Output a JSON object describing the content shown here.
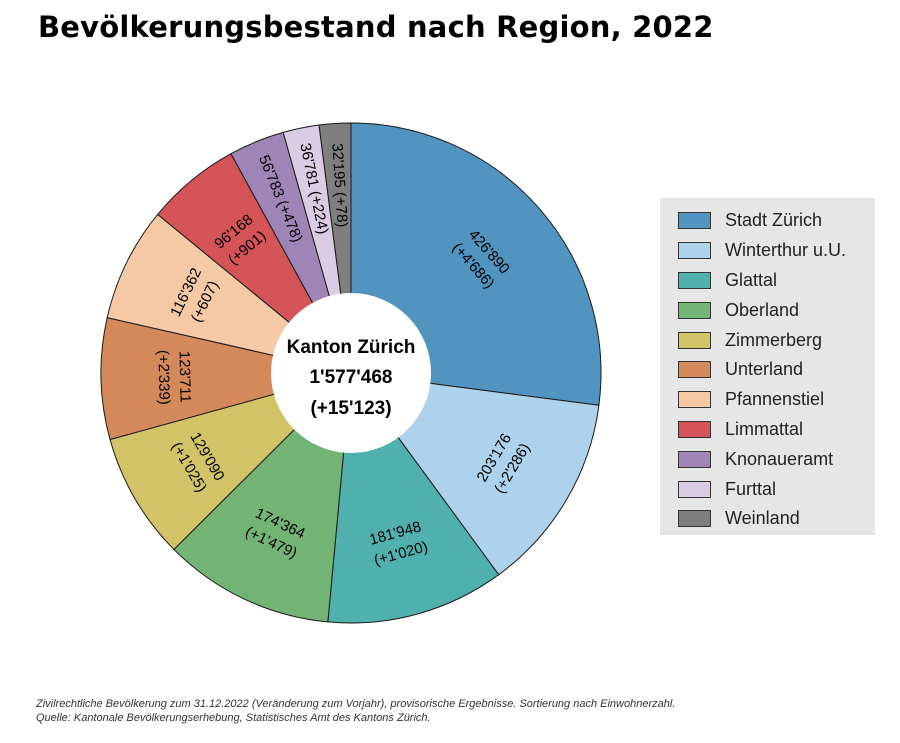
{
  "chart_data": {
    "type": "pie",
    "variant": "donut",
    "title": "Bevölkerungsbestand nach Region, 2022",
    "center_label": [
      "Kanton Zürich",
      "1'577'468",
      "(+15'123)"
    ],
    "total": 1577468,
    "total_change": 15123,
    "slices": [
      {
        "name": "Stadt Zürich",
        "value": 426890,
        "value_label": "426'890",
        "change_label": "(+4'686)",
        "color": "#5294c0"
      },
      {
        "name": "Winterthur u.U.",
        "value": 203176,
        "value_label": "203'176",
        "change_label": "(+2'286)",
        "color": "#aed1ec"
      },
      {
        "name": "Glattal",
        "value": 181948,
        "value_label": "181'948",
        "change_label": "(+1'020)",
        "color": "#4fb0ae"
      },
      {
        "name": "Oberland",
        "value": 174364,
        "value_label": "174'364",
        "change_label": "(+1'479)",
        "color": "#72b475"
      },
      {
        "name": "Zimmerberg",
        "value": 129090,
        "value_label": "129'090",
        "change_label": "(+1'025)",
        "color": "#d3c367"
      },
      {
        "name": "Unterland",
        "value": 123711,
        "value_label": "123'711",
        "change_label": "(+2'339)",
        "color": "#d4895a"
      },
      {
        "name": "Pfannenstiel",
        "value": 116362,
        "value_label": "116'362",
        "change_label": "(+607)",
        "color": "#f5c8a6"
      },
      {
        "name": "Limmattal",
        "value": 96168,
        "value_label": "96'168",
        "change_label": "(+901)",
        "color": "#d55459"
      },
      {
        "name": "Knonaueramt",
        "value": 56783,
        "value_label": "56'783",
        "change_label": "(+478)",
        "color": "#9f84b6"
      },
      {
        "name": "Furttal",
        "value": 36781,
        "value_label": "36'781",
        "change_label": "(+224)",
        "color": "#dbcbe3"
      },
      {
        "name": "Weinland",
        "value": 32195,
        "value_label": "32'195",
        "change_label": "(+78)",
        "color": "#7f7f7f"
      }
    ],
    "legend_position": "right"
  },
  "footnote": {
    "line1": "Zivilrechtliche Bevölkerung zum 31.12.2022 (Veränderung zum Vorjahr), provisorische Ergebnisse. Sortierung nach Einwohnerzahl.",
    "line2": "Quelle: Kantonale Bevölkerungserhebung, Statistisches Amt des Kantons Zürich."
  }
}
